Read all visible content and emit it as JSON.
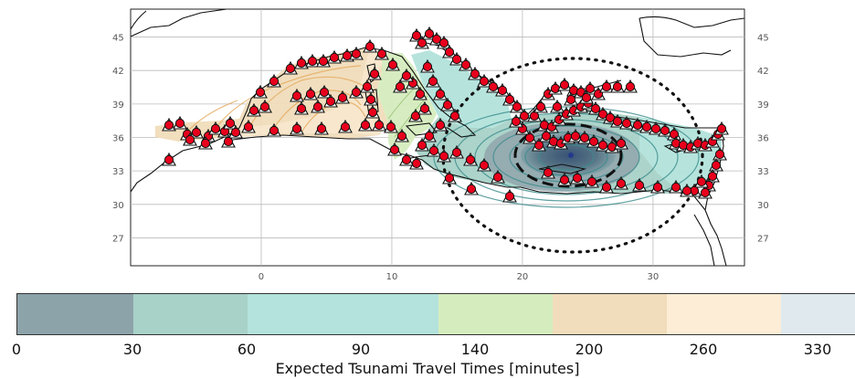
{
  "map": {
    "lat_ticks": [
      "45",
      "42",
      "39",
      "36",
      "33",
      "30",
      "27"
    ],
    "lon_ticks": [
      "0",
      "10",
      "20",
      "30"
    ],
    "lon_range": [
      -10,
      37
    ],
    "lat_range": [
      24.5,
      47.5
    ]
  },
  "colorbar": {
    "title": "Expected Tsunami Travel Times [minutes]",
    "tick_labels": [
      "0",
      "30",
      "60",
      "90",
      "140",
      "200",
      "260",
      "330"
    ],
    "colors": [
      "#8da3aa",
      "#a8d2c8",
      "#b3e3dc",
      "#d5edbe",
      "#f1ddbb",
      "#fdedd6",
      "#dfe9ee"
    ]
  },
  "colors": {
    "station_fill": "#e8001c",
    "station_outline": "#111111",
    "contour_teal": "#3b8c8c",
    "contour_orange": "#e3a656",
    "source": "#233a8a"
  }
}
